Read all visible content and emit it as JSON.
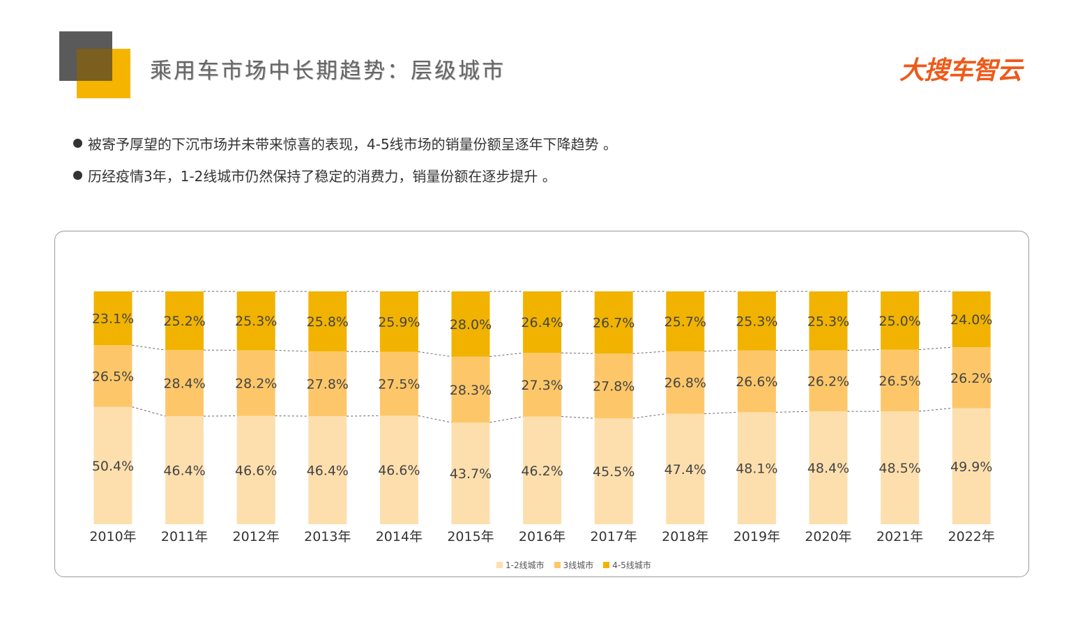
{
  "header": {
    "title": "乘用车市场中长期趋势：层级城市",
    "logo_text": "大搜车智云"
  },
  "bullets": [
    "被寄予厚望的下沉市场并未带来惊喜的表现，4-5线市场的销量份额呈逐年下降趋势 。",
    "历经疫情3年，1-2线城市仍然保持了稳定的消费力，销量份额在逐步提升 。"
  ],
  "colors": {
    "deco_dark": "#5a5a5a",
    "deco_yellow": "#f5b400",
    "logo": "#ee5a1a"
  },
  "chart_data": {
    "type": "bar",
    "stacked": "percent",
    "categories": [
      "2010年",
      "2011年",
      "2012年",
      "2013年",
      "2014年",
      "2015年",
      "2016年",
      "2017年",
      "2018年",
      "2019年",
      "2020年",
      "2021年",
      "2022年"
    ],
    "series": [
      {
        "name": "1-2线城市",
        "color": "#fddfae",
        "values": [
          50.4,
          46.4,
          46.6,
          46.4,
          46.6,
          43.7,
          46.2,
          45.5,
          47.4,
          48.1,
          48.4,
          48.5,
          49.9
        ]
      },
      {
        "name": "3线城市",
        "color": "#fdc769",
        "values": [
          26.5,
          28.4,
          28.2,
          27.8,
          27.5,
          28.3,
          27.3,
          27.8,
          26.8,
          26.6,
          26.2,
          26.5,
          26.2
        ]
      },
      {
        "name": "4-5线城市",
        "color": "#f1b300",
        "values": [
          23.1,
          25.2,
          25.3,
          25.8,
          25.9,
          28.0,
          26.4,
          26.7,
          25.7,
          25.3,
          25.3,
          25.0,
          24.0
        ]
      }
    ],
    "value_suffix": "%",
    "legend_position": "bottom-center",
    "connector_lines": "dashed",
    "grid": false
  }
}
